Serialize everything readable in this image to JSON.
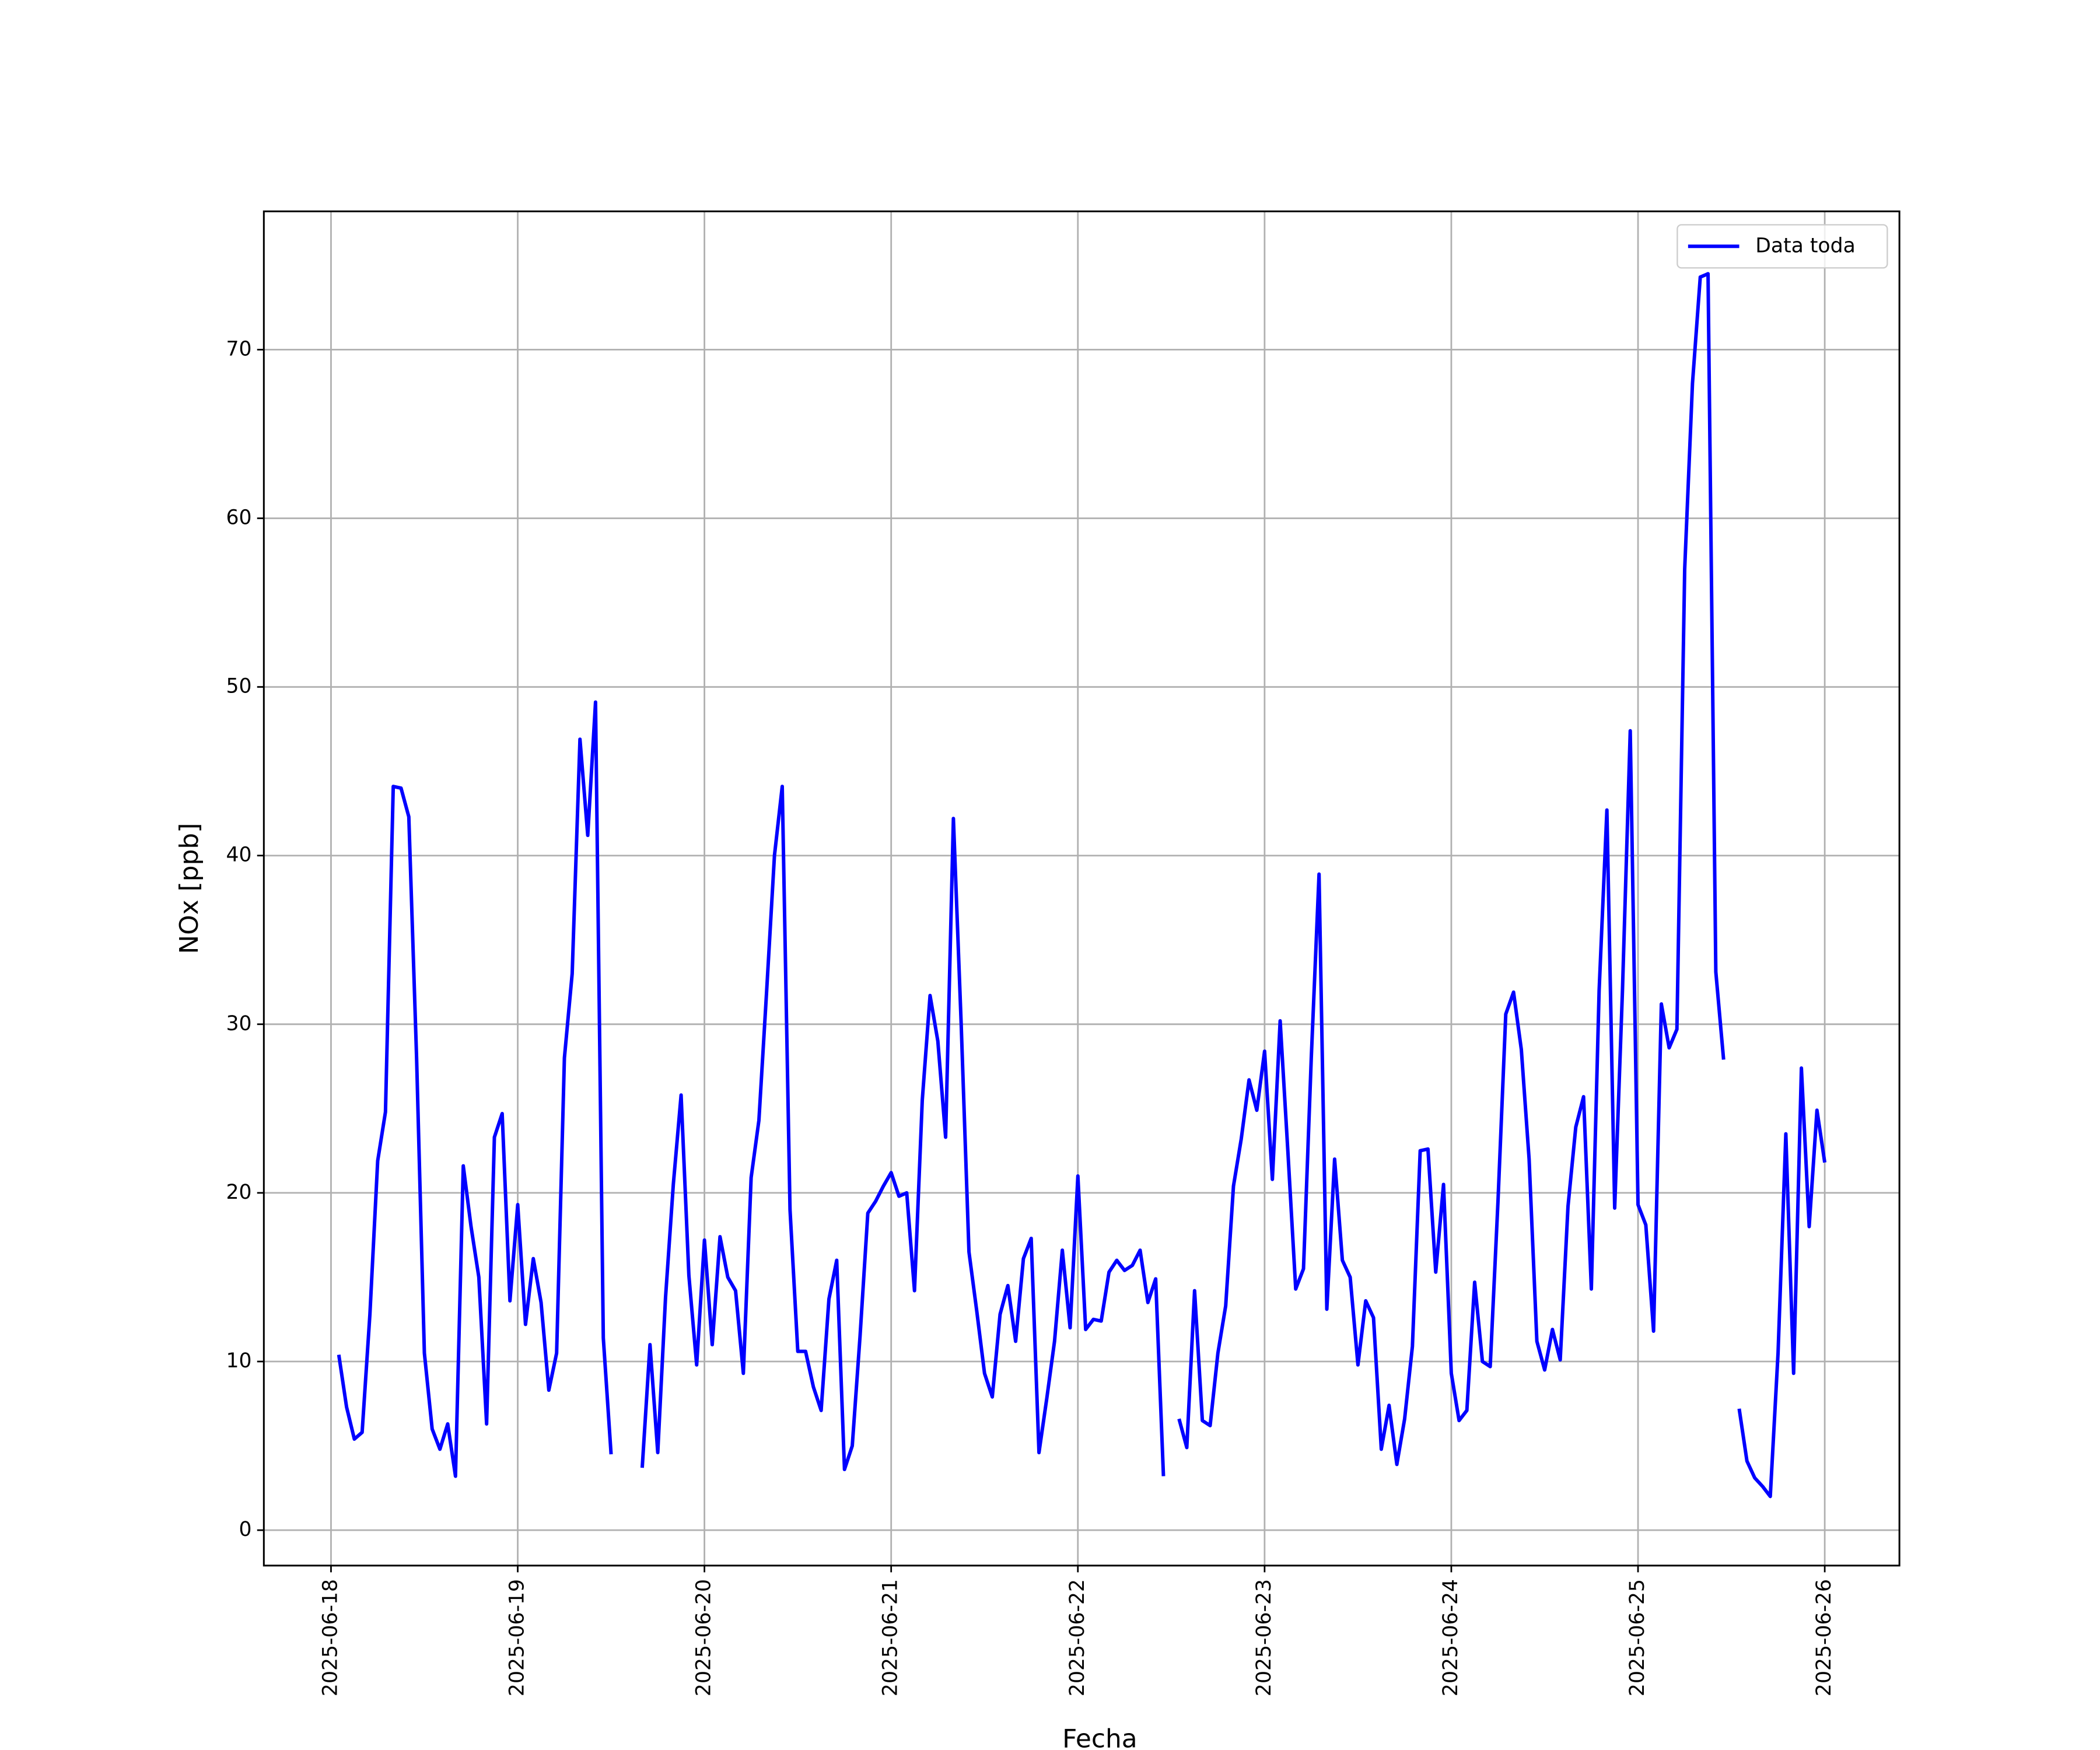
{
  "chart_data": {
    "type": "line",
    "xlabel": "Fecha",
    "ylabel": "NOx [ppb]",
    "x": [
      "2025-06-18 01:00",
      "2025-06-18 02:00",
      "2025-06-18 03:00",
      "2025-06-18 04:00",
      "2025-06-18 05:00",
      "2025-06-18 06:00",
      "2025-06-18 07:00",
      "2025-06-18 08:00",
      "2025-06-18 09:00",
      "2025-06-18 10:00",
      "2025-06-18 11:00",
      "2025-06-18 12:00",
      "2025-06-18 13:00",
      "2025-06-18 14:00",
      "2025-06-18 15:00",
      "2025-06-18 16:00",
      "2025-06-18 17:00",
      "2025-06-18 18:00",
      "2025-06-18 19:00",
      "2025-06-18 20:00",
      "2025-06-18 21:00",
      "2025-06-18 22:00",
      "2025-06-18 23:00",
      "2025-06-19 00:00",
      "2025-06-19 01:00",
      "2025-06-19 02:00",
      "2025-06-19 03:00",
      "2025-06-19 04:00",
      "2025-06-19 05:00",
      "2025-06-19 06:00",
      "2025-06-19 07:00",
      "2025-06-19 08:00",
      "2025-06-19 09:00",
      "2025-06-19 10:00",
      "2025-06-19 11:00",
      "2025-06-19 12:00",
      "2025-06-19 13:00",
      "2025-06-19 14:00",
      "2025-06-19 15:00",
      "2025-06-19 16:00",
      "2025-06-19 17:00",
      "2025-06-19 18:00",
      "2025-06-19 19:00",
      "2025-06-19 20:00",
      "2025-06-19 21:00",
      "2025-06-19 22:00",
      "2025-06-19 23:00",
      "2025-06-20 00:00",
      "2025-06-20 01:00",
      "2025-06-20 02:00",
      "2025-06-20 03:00",
      "2025-06-20 04:00",
      "2025-06-20 05:00",
      "2025-06-20 06:00",
      "2025-06-20 07:00",
      "2025-06-20 08:00",
      "2025-06-20 09:00",
      "2025-06-20 10:00",
      "2025-06-20 11:00",
      "2025-06-20 12:00",
      "2025-06-20 13:00",
      "2025-06-20 14:00",
      "2025-06-20 15:00",
      "2025-06-20 16:00",
      "2025-06-20 17:00",
      "2025-06-20 18:00",
      "2025-06-20 19:00",
      "2025-06-20 20:00",
      "2025-06-20 21:00",
      "2025-06-20 22:00",
      "2025-06-20 23:00",
      "2025-06-21 00:00",
      "2025-06-21 01:00",
      "2025-06-21 02:00",
      "2025-06-21 03:00",
      "2025-06-21 04:00",
      "2025-06-21 05:00",
      "2025-06-21 06:00",
      "2025-06-21 07:00",
      "2025-06-21 08:00",
      "2025-06-21 09:00",
      "2025-06-21 10:00",
      "2025-06-21 11:00",
      "2025-06-21 12:00",
      "2025-06-21 13:00",
      "2025-06-21 14:00",
      "2025-06-21 15:00",
      "2025-06-21 16:00",
      "2025-06-21 17:00",
      "2025-06-21 18:00",
      "2025-06-21 19:00",
      "2025-06-21 20:00",
      "2025-06-21 21:00",
      "2025-06-21 22:00",
      "2025-06-21 23:00",
      "2025-06-22 00:00",
      "2025-06-22 01:00",
      "2025-06-22 02:00",
      "2025-06-22 03:00",
      "2025-06-22 04:00",
      "2025-06-22 05:00",
      "2025-06-22 06:00",
      "2025-06-22 07:00",
      "2025-06-22 08:00",
      "2025-06-22 09:00",
      "2025-06-22 10:00",
      "2025-06-22 11:00",
      "2025-06-22 12:00",
      "2025-06-22 13:00",
      "2025-06-22 14:00",
      "2025-06-22 15:00",
      "2025-06-22 16:00",
      "2025-06-22 17:00",
      "2025-06-22 18:00",
      "2025-06-22 19:00",
      "2025-06-22 20:00",
      "2025-06-22 21:00",
      "2025-06-22 22:00",
      "2025-06-22 23:00",
      "2025-06-23 00:00",
      "2025-06-23 01:00",
      "2025-06-23 02:00",
      "2025-06-23 03:00",
      "2025-06-23 04:00",
      "2025-06-23 05:00",
      "2025-06-23 06:00",
      "2025-06-23 07:00",
      "2025-06-23 08:00",
      "2025-06-23 09:00",
      "2025-06-23 10:00",
      "2025-06-23 11:00",
      "2025-06-23 12:00",
      "2025-06-23 13:00",
      "2025-06-23 14:00",
      "2025-06-23 15:00",
      "2025-06-23 16:00",
      "2025-06-23 17:00",
      "2025-06-23 18:00",
      "2025-06-23 19:00",
      "2025-06-23 20:00",
      "2025-06-23 21:00",
      "2025-06-23 22:00",
      "2025-06-23 23:00",
      "2025-06-24 00:00",
      "2025-06-24 01:00",
      "2025-06-24 02:00",
      "2025-06-24 03:00",
      "2025-06-24 04:00",
      "2025-06-24 05:00",
      "2025-06-24 06:00",
      "2025-06-24 07:00",
      "2025-06-24 08:00",
      "2025-06-24 09:00",
      "2025-06-24 10:00",
      "2025-06-24 11:00",
      "2025-06-24 12:00",
      "2025-06-24 13:00",
      "2025-06-24 14:00",
      "2025-06-24 15:00",
      "2025-06-24 16:00",
      "2025-06-24 17:00",
      "2025-06-24 18:00",
      "2025-06-24 19:00",
      "2025-06-24 20:00",
      "2025-06-24 21:00",
      "2025-06-24 22:00",
      "2025-06-24 23:00",
      "2025-06-25 00:00",
      "2025-06-25 01:00",
      "2025-06-25 02:00",
      "2025-06-25 03:00",
      "2025-06-25 04:00",
      "2025-06-25 05:00",
      "2025-06-25 06:00",
      "2025-06-25 07:00",
      "2025-06-25 08:00",
      "2025-06-25 09:00",
      "2025-06-25 10:00",
      "2025-06-25 11:00",
      "2025-06-25 12:00",
      "2025-06-25 13:00",
      "2025-06-25 14:00",
      "2025-06-25 15:00",
      "2025-06-25 16:00",
      "2025-06-25 17:00",
      "2025-06-25 18:00",
      "2025-06-25 19:00",
      "2025-06-25 20:00",
      "2025-06-25 21:00",
      "2025-06-25 22:00",
      "2025-06-25 23:00",
      "2025-06-26 00:00"
    ],
    "series": [
      {
        "name": "Data toda",
        "color": "#0000ff",
        "values": [
          10.4,
          7.3,
          5.4,
          5.8,
          12.8,
          21.9,
          24.8,
          44.1,
          44.0,
          42.3,
          28,
          10.5,
          6.0,
          4.8,
          6.3,
          3.2,
          21.6,
          18.0,
          15.0,
          6.3,
          23.3,
          24.7,
          13.6,
          19.3,
          12.2,
          16.1,
          13.5,
          8.3,
          10.5,
          28.0,
          33.0,
          46.9,
          41.2,
          49.1,
          11.4,
          4.5,
          null,
          null,
          null,
          3.7,
          11.0,
          4.6,
          13.8,
          20.5,
          25.8,
          15.1,
          9.8,
          17.2,
          11.0,
          17.4,
          15.0,
          14.2,
          9.3,
          20.9,
          24.3,
          32.0,
          40.0,
          44.1,
          19.0,
          10.6,
          10.6,
          8.5,
          7.1,
          13.7,
          16.0,
          3.6,
          5.0,
          11.5,
          18.8,
          19.5,
          20.4,
          21.2,
          19.8,
          20.0,
          14.2,
          25.5,
          31.7,
          29.0,
          23.3,
          42.2,
          30.0,
          16.5,
          13.0,
          9.3,
          7.9,
          12.8,
          14.5,
          11.2,
          16.1,
          17.3,
          4.6,
          7.8,
          11.2,
          16.6,
          12.0,
          21.0,
          11.9,
          12.5,
          12.4,
          15.3,
          16.0,
          15.4,
          15.7,
          16.6,
          13.5,
          14.9,
          3.2,
          null,
          6.6,
          4.9,
          14.2,
          6.5,
          6.2,
          10.5,
          13.3,
          20.4,
          23.2,
          26.7,
          24.9,
          28.4,
          20.8,
          30.2,
          22.4,
          14.3,
          15.5,
          28.0,
          38.9,
          13.1,
          22.0,
          16.0,
          15.0,
          9.8,
          13.6,
          12.6,
          4.8,
          7.4,
          3.9,
          6.6,
          10.9,
          22.5,
          22.6,
          15.3,
          20.5,
          9.3,
          6.5,
          7.1,
          14.7,
          10.0,
          9.7,
          19.5,
          30.6,
          31.9,
          28.5,
          22.0,
          11.2,
          9.5,
          11.9,
          10.1,
          19.2,
          23.9,
          25.7,
          14.3,
          32.0,
          42.7,
          19.1,
          32.0,
          47.4,
          19.3,
          18.1,
          11.8,
          31.2,
          28.6,
          29.7,
          57.0,
          68.0,
          74.3,
          74.5,
          33.1,
          27.9,
          null,
          7.2,
          4.1,
          3.1,
          2.6,
          2.0,
          10.5,
          23.5,
          9.3,
          27.4,
          18.0,
          24.9,
          21.8
        ]
      }
    ],
    "xlim": [
      "2025-06-17 15:22",
      "2025-06-26 09:36"
    ],
    "xticks": [
      "2025-06-18",
      "2025-06-19",
      "2025-06-20",
      "2025-06-21",
      "2025-06-22",
      "2025-06-23",
      "2025-06-24",
      "2025-06-25",
      "2025-06-26"
    ],
    "ylim": [
      -2.1,
      78.2
    ],
    "yticks": [
      0,
      10,
      20,
      30,
      40,
      50,
      60,
      70
    ],
    "grid": true,
    "legend": "upper right"
  }
}
